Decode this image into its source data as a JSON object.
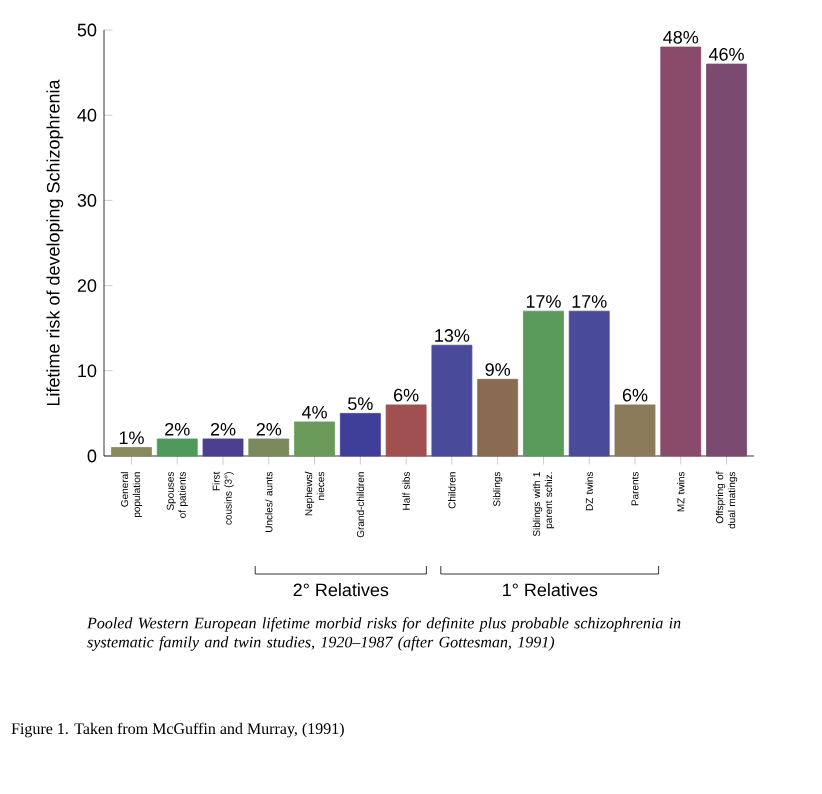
{
  "chart_data": {
    "type": "bar",
    "ylabel": "Lifetime risk of developing  Schizophrenia",
    "categories": [
      "General population",
      "Spouses of patients",
      "First cousins (3°)",
      "Uncles/ aunts",
      "Nephews/ nieces",
      "Grand-children",
      "Half sibs",
      "Children",
      "Siblings",
      "Siblings with 1 parent schiz.",
      "DZ twins",
      "Parents",
      "MZ twins",
      "Offspring of dual matings"
    ],
    "values": [
      1,
      2,
      2,
      2,
      4,
      5,
      6,
      13,
      9,
      17,
      17,
      6,
      48,
      46
    ],
    "value_labels": [
      "1%",
      "2%",
      "2%",
      "2%",
      "4%",
      "5%",
      "6%",
      "13%",
      "9%",
      "17%",
      "17%",
      "6%",
      "48%",
      "46%"
    ],
    "colors": [
      "#8a8a5a",
      "#4f9a5a",
      "#4b3f8f",
      "#7a8a5a",
      "#6a9a5a",
      "#3f3f9a",
      "#a05050",
      "#4a4a9a",
      "#8a6a50",
      "#5a9a5a",
      "#4a4a9a",
      "#8a7a5a",
      "#8a4a6a",
      "#7a4a70"
    ],
    "ylim": [
      0,
      50
    ],
    "yticks": [
      0,
      10,
      20,
      30,
      40,
      50
    ],
    "annotations": [
      "2° Relatives",
      "1° Relatives",
      "Pooled Western European lifetime morbid risks for definite plus probable schizophrenia in systematic family and twin studies, 1920–1987 (after Gottesman, 1991)",
      "Figure 1. Taken from McGuffin and Murray, (1991)"
    ]
  }
}
